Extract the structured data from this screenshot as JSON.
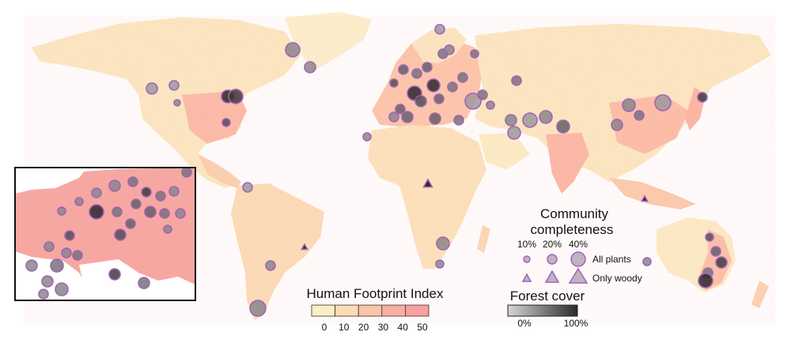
{
  "legend": {
    "community_title_line1": "Community",
    "community_title_line2": "completeness",
    "size_labels": [
      "10%",
      "20%",
      "40%"
    ],
    "all_plants_label": "All plants",
    "only_woody_label": "Only woody",
    "forest_title": "Forest cover",
    "forest_min": "0%",
    "forest_max": "100%",
    "hfi_title": "Human Footprint Index",
    "hfi_ticks": [
      "0",
      "10",
      "20",
      "30",
      "40",
      "50"
    ]
  },
  "colors": {
    "hfi_scale": [
      "#fbeec4",
      "#fbdcb4",
      "#fbc4a8",
      "#fbaea2",
      "#f9a09f"
    ],
    "marker_stroke": "#a063b8",
    "forest_low": "#d6d6d6",
    "forest_high": "#2a2a2a"
  }
}
